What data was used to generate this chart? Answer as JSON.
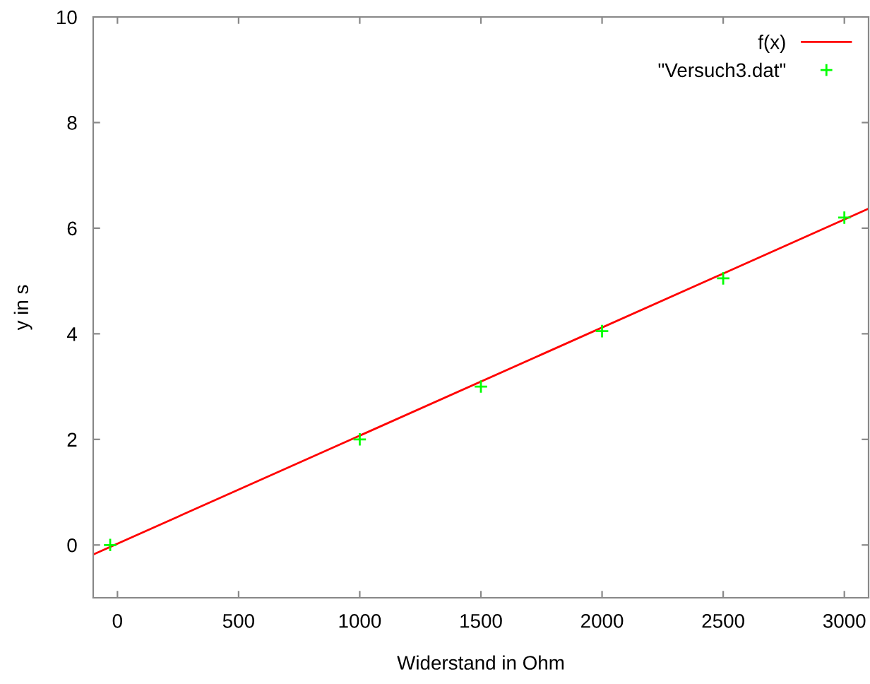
{
  "chart_data": {
    "type": "line",
    "xlabel": "Widerstand in Ohm",
    "ylabel": "y in s",
    "xlim": [
      -100,
      3100
    ],
    "xticks": [
      0,
      500,
      1000,
      1500,
      2000,
      2500,
      3000
    ],
    "ylim": [
      -1,
      10
    ],
    "yticks": [
      0,
      2,
      4,
      6,
      8,
      10
    ],
    "grid": false,
    "legend": "top right",
    "series": [
      {
        "name": "f(x)",
        "color": "#ff0000",
        "x": [
          -100,
          3100
        ],
        "values": [
          -0.18,
          6.37
        ],
        "line_style": "solid",
        "marker": "none"
      },
      {
        "name": "\"Versuch3.dat\"",
        "type": "scatter",
        "color": "#00ff00",
        "x": [
          -30,
          1000,
          1500,
          2000,
          2500,
          3000
        ],
        "values": [
          0,
          2.0,
          3.0,
          4.05,
          5.05,
          6.2
        ],
        "marker": "cross"
      }
    ]
  }
}
